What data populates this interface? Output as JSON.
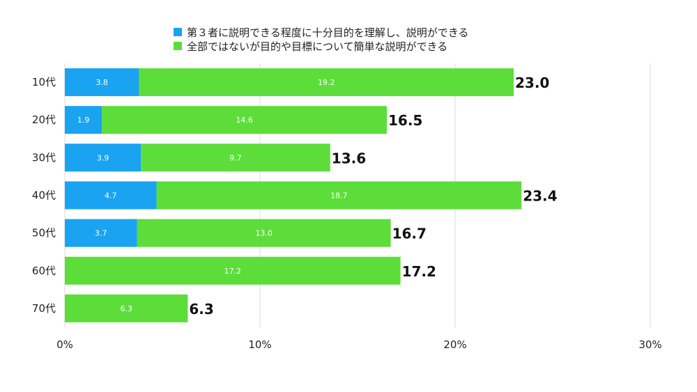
{
  "chart_data": {
    "type": "bar",
    "orientation": "horizontal",
    "stacked": true,
    "categories": [
      "10代",
      "20代",
      "30代",
      "40代",
      "50代",
      "60代",
      "70代"
    ],
    "series": [
      {
        "name": "第３者に説明できる程度に十分目的を理解し、説明ができる",
        "color": "#1aa3f0",
        "values": [
          3.8,
          1.9,
          3.9,
          4.7,
          3.7,
          0,
          0
        ]
      },
      {
        "name": "全部ではないが目的や目標について簡単な説明ができる",
        "color": "#5ddd3a",
        "values": [
          19.2,
          14.6,
          9.7,
          18.7,
          13.0,
          17.2,
          6.3
        ]
      }
    ],
    "totals": [
      "23.0",
      "16.5",
      "13.6",
      "23.4",
      "16.7",
      "17.2",
      "6.3"
    ],
    "xlim": [
      0,
      30
    ],
    "x_ticks": [
      "0%",
      "10%",
      "20%",
      "30%"
    ],
    "grid": true,
    "legend_position": "top"
  }
}
